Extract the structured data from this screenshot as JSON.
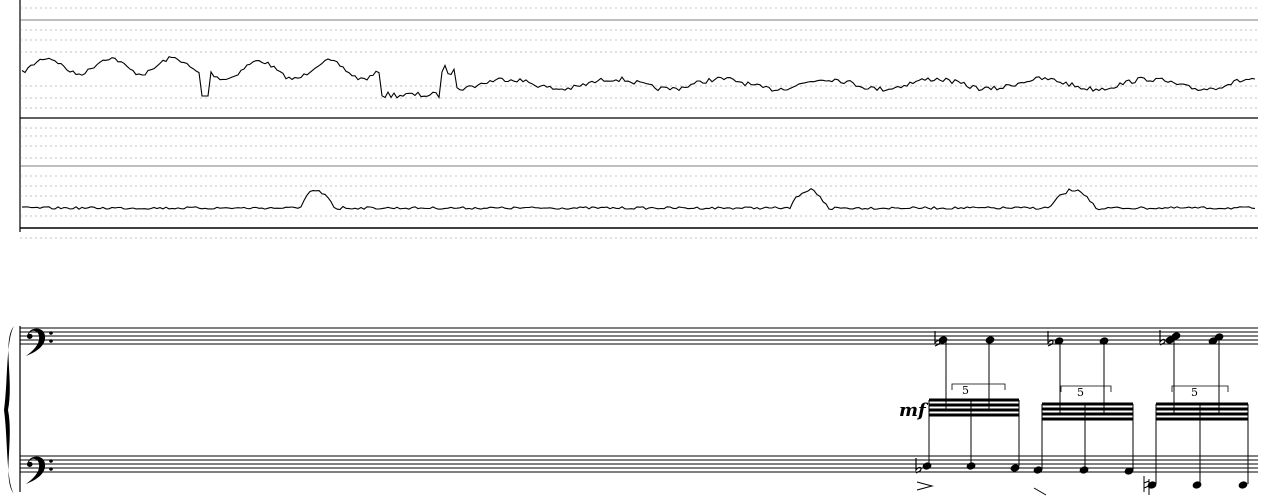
{
  "graph": {
    "upper_trace": "pitch-contour",
    "lower_trace": "amplitude-envelope"
  },
  "score": {
    "clef": "bass",
    "dynamic": "mf",
    "tuplets": [
      {
        "number": "5"
      },
      {
        "number": "5"
      },
      {
        "number": "5"
      }
    ]
  }
}
